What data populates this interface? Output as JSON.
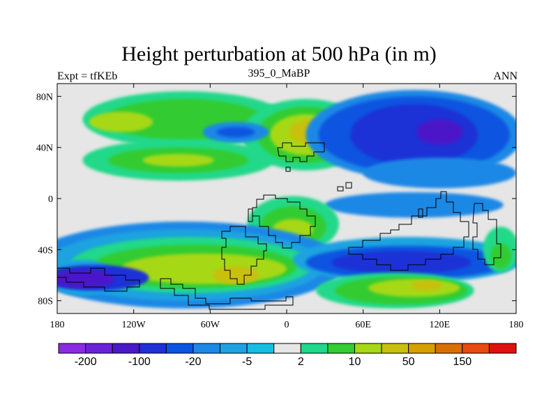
{
  "title": "Height perturbation at 500 hPa (in m)",
  "subtitle_left": "Expt = tfKEb",
  "subtitle_center": "395_0_MaBP",
  "subtitle_right": "ANN",
  "map": {
    "lon_range": [
      -180,
      180
    ],
    "lat_range": [
      -90,
      90
    ],
    "x_ticks": [
      {
        "lon": -180,
        "label": "180"
      },
      {
        "lon": -120,
        "label": "120W"
      },
      {
        "lon": -60,
        "label": "60W"
      },
      {
        "lon": 0,
        "label": "0"
      },
      {
        "lon": 60,
        "label": "60E"
      },
      {
        "lon": 120,
        "label": "120E"
      },
      {
        "lon": 180,
        "label": "180"
      }
    ],
    "y_ticks": [
      {
        "lat": 80,
        "label": "80N"
      },
      {
        "lat": 40,
        "label": "40N"
      },
      {
        "lat": 0,
        "label": "0"
      },
      {
        "lat": -40,
        "label": "40S"
      },
      {
        "lat": -80,
        "label": "80S"
      }
    ],
    "background_color": "#e6e6e6",
    "blobs": [
      {
        "lon": -80,
        "lat": 62,
        "rlon": 80,
        "rlat": 22,
        "level": 9
      },
      {
        "lon": -80,
        "lat": 62,
        "rlon": 62,
        "rlat": 16,
        "level": 10
      },
      {
        "lon": -130,
        "lat": 60,
        "rlon": 25,
        "rlat": 8,
        "level": 11
      },
      {
        "lon": -85,
        "lat": 30,
        "rlon": 75,
        "rlat": 16,
        "level": 9
      },
      {
        "lon": -85,
        "lat": 30,
        "rlon": 55,
        "rlat": 10,
        "level": 10
      },
      {
        "lon": -85,
        "lat": 30,
        "rlon": 28,
        "rlat": 5,
        "level": 11
      },
      {
        "lon": 15,
        "lat": 50,
        "rlon": 50,
        "rlat": 28,
        "level": 9
      },
      {
        "lon": 15,
        "lat": 50,
        "rlon": 38,
        "rlat": 22,
        "level": 10
      },
      {
        "lon": 15,
        "lat": 50,
        "rlon": 28,
        "rlat": 16,
        "level": 11
      },
      {
        "lon": 20,
        "lat": 52,
        "rlon": 18,
        "rlat": 10,
        "level": 12
      },
      {
        "lon": 100,
        "lat": 50,
        "rlon": 85,
        "rlat": 35,
        "level": 5
      },
      {
        "lon": 100,
        "lat": 50,
        "rlon": 75,
        "rlat": 30,
        "level": 4
      },
      {
        "lon": 100,
        "lat": 50,
        "rlon": 50,
        "rlat": 24,
        "level": 3
      },
      {
        "lon": 120,
        "lat": 52,
        "rlon": 18,
        "rlat": 10,
        "level": 2
      },
      {
        "lon": -40,
        "lat": 52,
        "rlon": 26,
        "rlat": 8,
        "level": 5
      },
      {
        "lon": -40,
        "lat": 52,
        "rlon": 15,
        "rlat": 4,
        "level": 4
      },
      {
        "lon": 120,
        "lat": 20,
        "rlon": 60,
        "rlat": 12,
        "level": 5
      },
      {
        "lon": 100,
        "lat": -5,
        "rlon": 70,
        "rlat": 10,
        "level": 5
      },
      {
        "lon": 5,
        "lat": -20,
        "rlon": 36,
        "rlat": 22,
        "level": 9
      },
      {
        "lon": 5,
        "lat": -22,
        "rlon": 26,
        "rlat": 16,
        "level": 10
      },
      {
        "lon": 5,
        "lat": -24,
        "rlon": 16,
        "rlat": 8,
        "level": 11
      },
      {
        "lon": -80,
        "lat": -52,
        "rlon": 125,
        "rlat": 34,
        "level": 5
      },
      {
        "lon": -80,
        "lat": -52,
        "rlon": 110,
        "rlat": 28,
        "level": 6
      },
      {
        "lon": -75,
        "lat": -52,
        "rlon": 95,
        "rlat": 22,
        "level": 9
      },
      {
        "lon": -72,
        "lat": -53,
        "rlon": 80,
        "rlat": 17,
        "level": 10
      },
      {
        "lon": -65,
        "lat": -55,
        "rlon": 65,
        "rlat": 12,
        "level": 11
      },
      {
        "lon": -40,
        "lat": -60,
        "rlon": 18,
        "rlat": 7,
        "level": 12
      },
      {
        "lon": -160,
        "lat": -62,
        "rlon": 28,
        "rlat": 14,
        "level": 6
      },
      {
        "lon": -150,
        "lat": -62,
        "rlon": 42,
        "rlat": 10,
        "level": 3
      },
      {
        "lon": -160,
        "lat": -63,
        "rlon": 25,
        "rlat": 7,
        "level": 2
      },
      {
        "lon": 95,
        "lat": -48,
        "rlon": 90,
        "rlat": 18,
        "level": 6
      },
      {
        "lon": 95,
        "lat": -50,
        "rlon": 80,
        "rlat": 13,
        "level": 4
      },
      {
        "lon": 90,
        "lat": -50,
        "rlon": 55,
        "rlat": 9,
        "level": 3
      },
      {
        "lon": 85,
        "lat": -72,
        "rlon": 62,
        "rlat": 14,
        "level": 9
      },
      {
        "lon": 90,
        "lat": -72,
        "rlon": 52,
        "rlat": 11,
        "level": 10
      },
      {
        "lon": 100,
        "lat": -70,
        "rlon": 36,
        "rlat": 7,
        "level": 11
      },
      {
        "lon": 110,
        "lat": -68,
        "rlon": 12,
        "rlat": 4,
        "level": 12
      },
      {
        "lon": 168,
        "lat": -40,
        "rlon": 14,
        "rlat": 18,
        "level": 9
      },
      {
        "lon": 168,
        "lat": -45,
        "rlon": 8,
        "rlat": 10,
        "level": 10
      }
    ]
  },
  "colorbar": {
    "colors": [
      "#8a2be2",
      "#6a22d8",
      "#4b18c8",
      "#1f30d6",
      "#0a55e0",
      "#1e88e5",
      "#1fa3e0",
      "#17bde0",
      "#e6e6e6",
      "#20d889",
      "#33cc33",
      "#a6d817",
      "#c8c00f",
      "#d6a000",
      "#d67000",
      "#e84a10",
      "#e01010"
    ],
    "labels": [
      {
        "after_box": 1,
        "text": "-200"
      },
      {
        "after_box": 3,
        "text": "-100"
      },
      {
        "after_box": 5,
        "text": "-20"
      },
      {
        "after_box": 7,
        "text": "-5"
      },
      {
        "after_box": 9,
        "text": "2"
      },
      {
        "after_box": 11,
        "text": "10"
      },
      {
        "after_box": 13,
        "text": "50"
      },
      {
        "after_box": 15,
        "text": "150"
      }
    ]
  }
}
